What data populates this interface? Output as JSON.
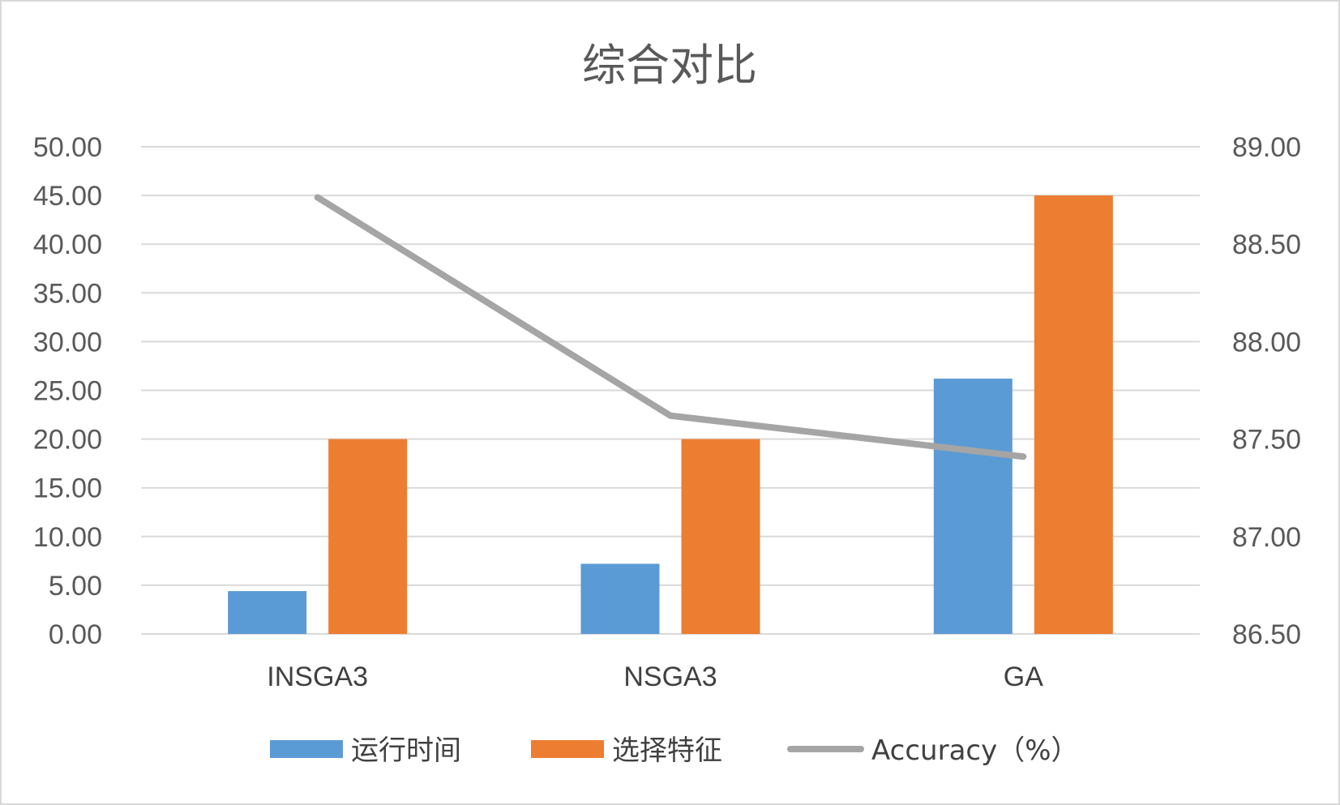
{
  "chart_data": {
    "type": "bar",
    "title": "综合对比",
    "categories": [
      "INSGA3",
      "NSGA3",
      "GA"
    ],
    "series": [
      {
        "name": "运行时间",
        "type": "bar",
        "axis": "left",
        "color": "#5b9bd5",
        "values": [
          4.4,
          7.2,
          26.2
        ]
      },
      {
        "name": "选择特征",
        "type": "bar",
        "axis": "left",
        "color": "#ed7d31",
        "values": [
          20.0,
          20.0,
          45.0
        ]
      },
      {
        "name": "Accuracy（%）",
        "type": "line",
        "axis": "right",
        "color": "#a5a5a5",
        "values": [
          88.74,
          87.62,
          87.41
        ]
      }
    ],
    "y_left": {
      "ylim": [
        0,
        50
      ],
      "ticks": [
        "0.00",
        "5.00",
        "10.00",
        "15.00",
        "20.00",
        "25.00",
        "30.00",
        "35.00",
        "40.00",
        "45.00",
        "50.00"
      ]
    },
    "y_right": {
      "ylim": [
        86.5,
        89.0
      ],
      "ticks": [
        "86.50",
        "87.00",
        "87.50",
        "88.00",
        "88.50",
        "89.00"
      ]
    },
    "grid": true,
    "legend_position": "bottom"
  }
}
